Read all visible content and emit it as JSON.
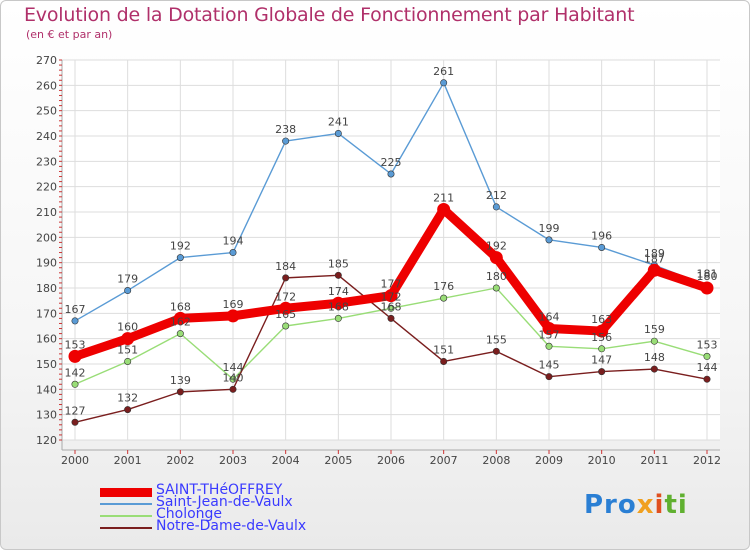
{
  "title": "Evolution de la Dotation Globale de Fonctionnement par Habitant",
  "subtitle": "(en € et par an)",
  "logo": {
    "text": "Proxiti",
    "colors": [
      "#2a7fd4",
      "#f0a020",
      "#e05020",
      "#60b030"
    ]
  },
  "chart_data": {
    "type": "line",
    "title": "Evolution de la Dotation Globale de Fonctionnement par Habitant",
    "ylabel": "(en € et par an)",
    "xlabel": "",
    "ylim": [
      120,
      270
    ],
    "yticks": [
      120,
      130,
      140,
      150,
      160,
      170,
      180,
      190,
      200,
      210,
      220,
      230,
      240,
      250,
      260,
      270
    ],
    "categories": [
      "2000",
      "2001",
      "2002",
      "2003",
      "2004",
      "2005",
      "2006",
      "2007",
      "2008",
      "2009",
      "2010",
      "2011",
      "2012"
    ],
    "grid": true,
    "legend_position": "bottom-left",
    "series": [
      {
        "name": "SAINT-THéOFFREY",
        "color": "#ee0000",
        "emphasis": true,
        "values": [
          153,
          160,
          168,
          169,
          172,
          174,
          177,
          211,
          192,
          164,
          163,
          187,
          180
        ]
      },
      {
        "name": "Saint-Jean-de-Vaulx",
        "color": "#5a9bd5",
        "values": [
          167,
          179,
          192,
          194,
          238,
          241,
          225,
          261,
          212,
          199,
          196,
          189,
          181
        ]
      },
      {
        "name": "Cholonge",
        "color": "#99dd77",
        "values": [
          142,
          151,
          162,
          144,
          165,
          168,
          172,
          176,
          180,
          157,
          156,
          159,
          153
        ]
      },
      {
        "name": "Notre-Dame-de-Vaulx",
        "color": "#7a1e1e",
        "values": [
          127,
          132,
          139,
          140,
          184,
          185,
          168,
          151,
          155,
          145,
          147,
          148,
          144
        ]
      }
    ]
  }
}
